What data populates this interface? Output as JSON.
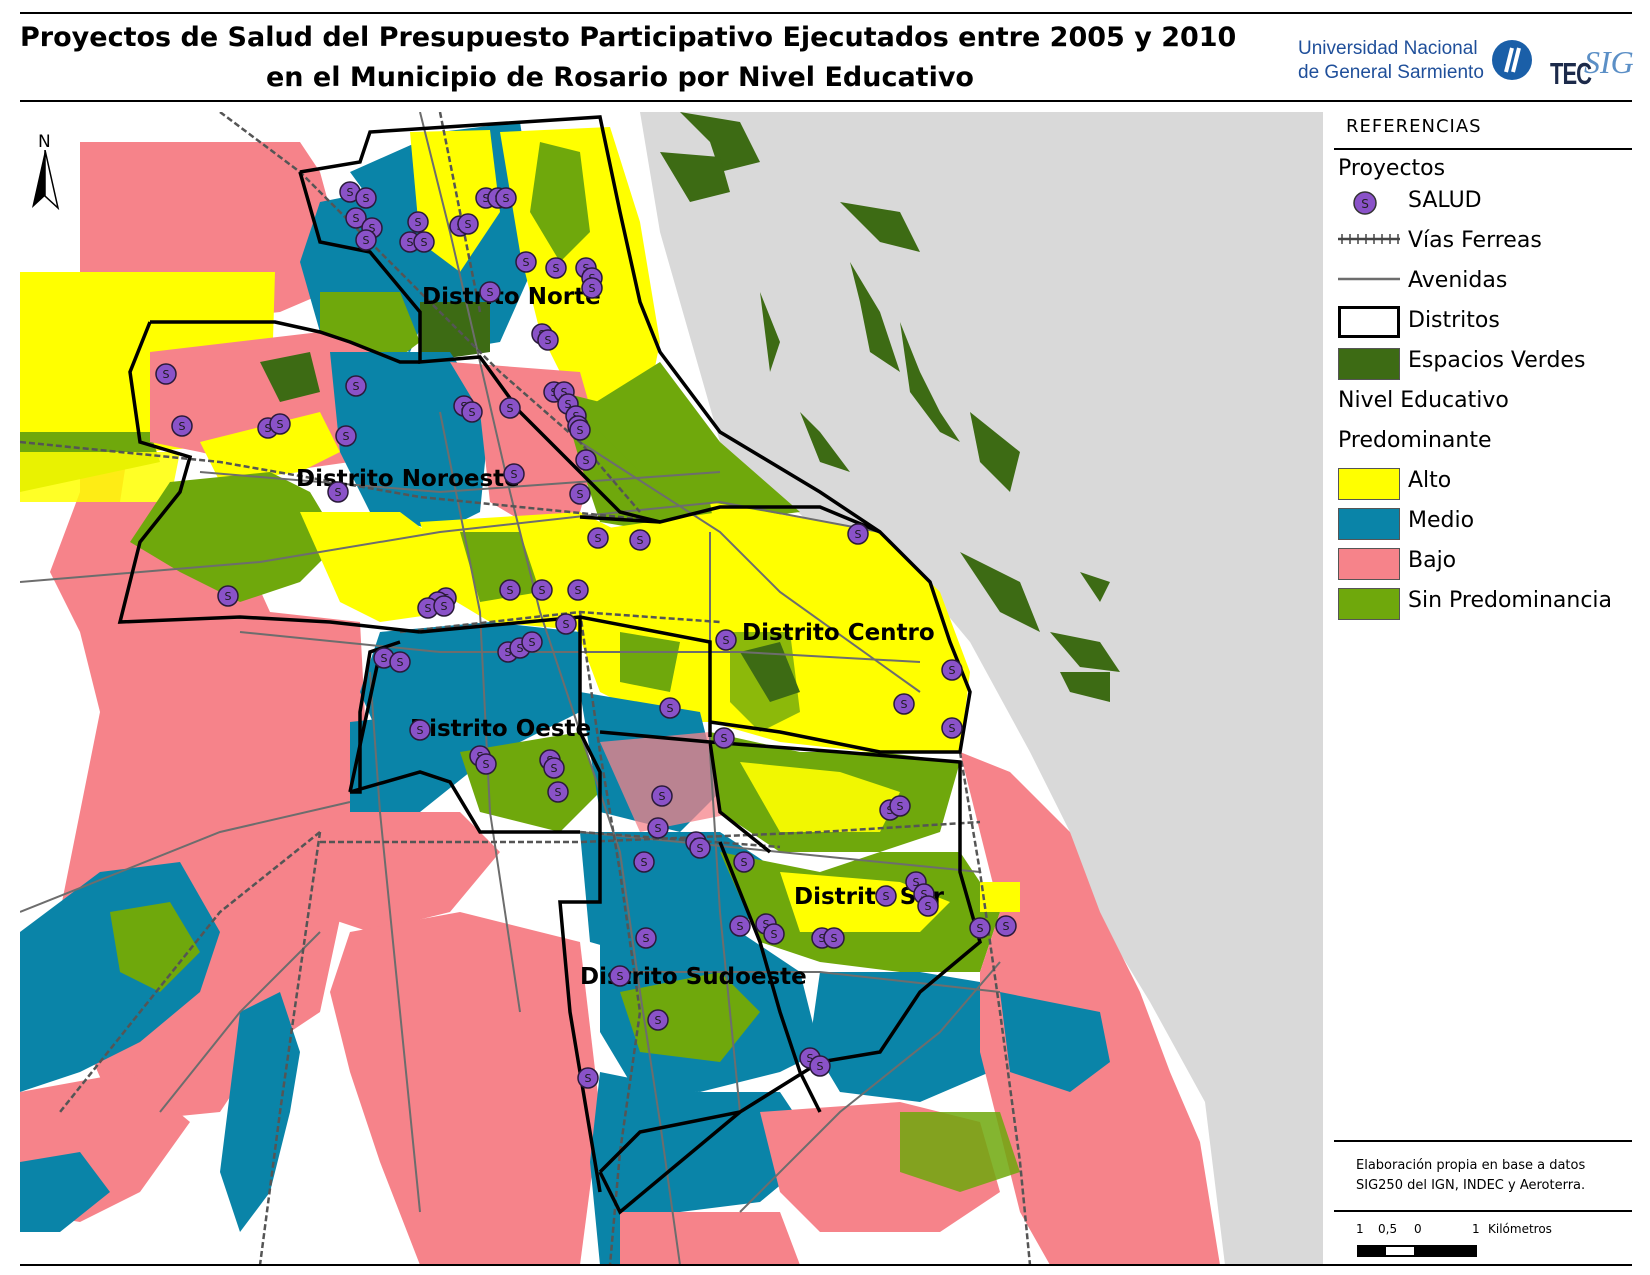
{
  "title": {
    "line1": "Proyectos de Salud del Presupuesto Participativo Ejecutados entre 2005 y 2010",
    "line2": "en el Municipio de Rosario por Nivel Educativo"
  },
  "logos": {
    "ungs_line1": "Universidad Nacional",
    "ungs_line2": "de General Sarmiento",
    "tec": "TEC",
    "sig": "SIG"
  },
  "north_arrow": {
    "label": "N"
  },
  "districts": [
    "Distrito Norte",
    "Distrito Noroeste",
    "Distrito Centro",
    "Distrito Oeste",
    "Distrito Sur",
    "Distrito Sudoeste"
  ],
  "marker_symbol": "S",
  "legend": {
    "title": "REFERENCIAS",
    "section_projects": "Proyectos",
    "item_salud": "SALUD",
    "item_railways": "Vías Ferreas",
    "item_avenues": "Avenidas",
    "item_districts": "Distritos",
    "item_green": "Espacios Verdes",
    "section_education_1": "Nivel Educativo",
    "section_education_2": "Predominante",
    "levels": [
      {
        "label": "Alto",
        "color": "#ffff00"
      },
      {
        "label": "Medio",
        "color": "#0a84a8"
      },
      {
        "label": "Bajo",
        "color": "#f6838a"
      },
      {
        "label": "Sin Predominancia",
        "color": "#6fa80c"
      }
    ],
    "colors": {
      "salud_marker": "#8a52c8",
      "green_space": "#3d6b14",
      "river_background": "#d9d9d9",
      "railway": "#555555",
      "avenue": "#6d6d6d"
    }
  },
  "footer": {
    "note_line1": "Elaboración propia en base a datos",
    "note_line2": "SIG250 del IGN, INDEC y Aeroterra.",
    "scale_ticks": [
      "1",
      "0,5",
      "0",
      "1"
    ],
    "scale_unit": "Kilómetros"
  }
}
